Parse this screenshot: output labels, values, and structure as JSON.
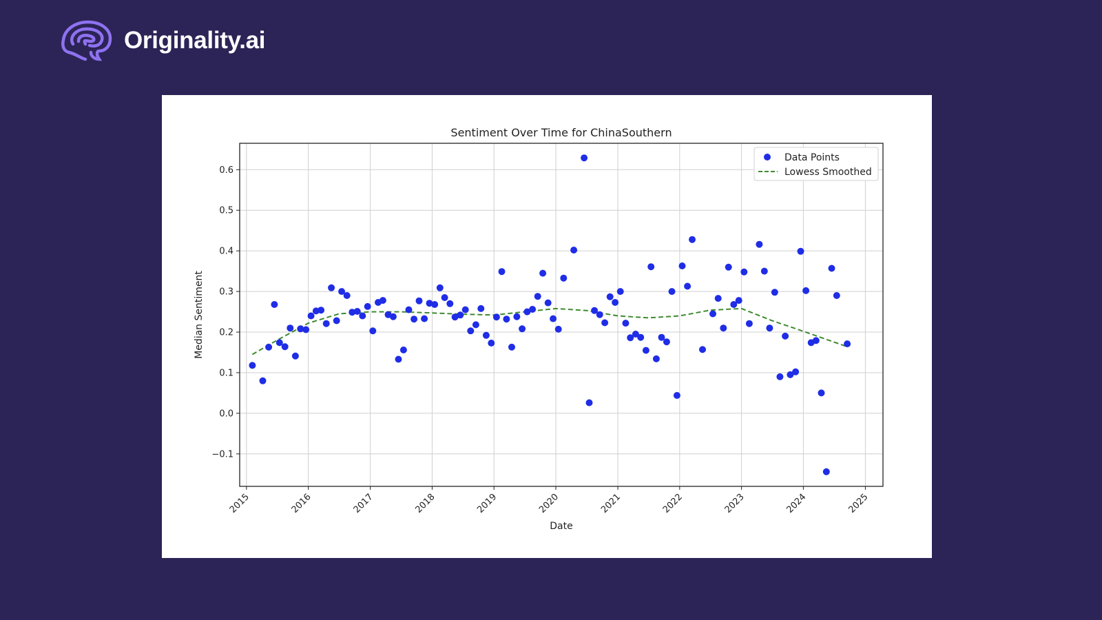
{
  "brand": {
    "name": "Originality.ai",
    "logo_icon": "brain-swirl-icon"
  },
  "chart_data": {
    "type": "scatter",
    "title": "Sentiment Over Time for ChinaSouthern",
    "xlabel": "Date",
    "ylabel": "Median Sentiment",
    "xlim": [
      "2014-11-22",
      "2025-04-15"
    ],
    "ylim": [
      -0.18,
      0.665
    ],
    "x_ticks": [
      "2015",
      "2016",
      "2017",
      "2018",
      "2019",
      "2020",
      "2021",
      "2022",
      "2023",
      "2024",
      "2025"
    ],
    "y_ticks": [
      "0.6",
      "0.5",
      "0.4",
      "0.3",
      "0.2",
      "0.1",
      "0.0",
      "−0.1"
    ],
    "y_tick_values": [
      0.6,
      0.5,
      0.4,
      0.3,
      0.2,
      0.1,
      0.0,
      -0.1
    ],
    "grid": true,
    "legend_position": "top-right",
    "series": [
      {
        "name": "Data Points",
        "kind": "scatter",
        "color": "#1f2de6",
        "points": [
          [
            "2015-02-05",
            0.118
          ],
          [
            "2015-04-07",
            0.08
          ],
          [
            "2015-05-12",
            0.163
          ],
          [
            "2015-06-15",
            0.268
          ],
          [
            "2015-07-15",
            0.174
          ],
          [
            "2015-08-16",
            0.164
          ],
          [
            "2015-09-16",
            0.21
          ],
          [
            "2015-10-17",
            0.141
          ],
          [
            "2015-11-16",
            0.208
          ],
          [
            "2015-12-18",
            0.206
          ],
          [
            "2016-01-17",
            0.24
          ],
          [
            "2016-02-16",
            0.252
          ],
          [
            "2016-03-16",
            0.254
          ],
          [
            "2016-04-16",
            0.221
          ],
          [
            "2016-05-16",
            0.309
          ],
          [
            "2016-06-16",
            0.228
          ],
          [
            "2016-07-16",
            0.3
          ],
          [
            "2016-08-16",
            0.29
          ],
          [
            "2016-09-16",
            0.249
          ],
          [
            "2016-10-16",
            0.251
          ],
          [
            "2016-11-16",
            0.24
          ],
          [
            "2016-12-16",
            0.263
          ],
          [
            "2017-01-16",
            0.203
          ],
          [
            "2017-02-16",
            0.273
          ],
          [
            "2017-03-16",
            0.278
          ],
          [
            "2017-04-16",
            0.243
          ],
          [
            "2017-05-16",
            0.238
          ],
          [
            "2017-06-16",
            0.133
          ],
          [
            "2017-07-16",
            0.156
          ],
          [
            "2017-08-16",
            0.255
          ],
          [
            "2017-09-16",
            0.232
          ],
          [
            "2017-10-16",
            0.277
          ],
          [
            "2017-11-16",
            0.233
          ],
          [
            "2017-12-16",
            0.271
          ],
          [
            "2018-01-16",
            0.268
          ],
          [
            "2018-02-16",
            0.309
          ],
          [
            "2018-03-16",
            0.285
          ],
          [
            "2018-04-16",
            0.27
          ],
          [
            "2018-05-16",
            0.237
          ],
          [
            "2018-06-16",
            0.242
          ],
          [
            "2018-07-16",
            0.255
          ],
          [
            "2018-08-16",
            0.203
          ],
          [
            "2018-09-16",
            0.218
          ],
          [
            "2018-10-16",
            0.258
          ],
          [
            "2018-11-16",
            0.192
          ],
          [
            "2018-12-16",
            0.173
          ],
          [
            "2019-01-16",
            0.237
          ],
          [
            "2019-02-16",
            0.349
          ],
          [
            "2019-03-16",
            0.232
          ],
          [
            "2019-04-16",
            0.163
          ],
          [
            "2019-05-16",
            0.238
          ],
          [
            "2019-06-16",
            0.208
          ],
          [
            "2019-07-16",
            0.25
          ],
          [
            "2019-08-16",
            0.256
          ],
          [
            "2019-09-16",
            0.288
          ],
          [
            "2019-10-16",
            0.345
          ],
          [
            "2019-11-16",
            0.272
          ],
          [
            "2019-12-16",
            0.233
          ],
          [
            "2020-01-16",
            0.207
          ],
          [
            "2020-02-16",
            0.333
          ],
          [
            "2020-04-16",
            0.402
          ],
          [
            "2020-06-16",
            0.629
          ],
          [
            "2020-07-16",
            0.026
          ],
          [
            "2020-08-16",
            0.253
          ],
          [
            "2020-09-16",
            0.243
          ],
          [
            "2020-10-16",
            0.223
          ],
          [
            "2020-11-16",
            0.287
          ],
          [
            "2020-12-16",
            0.273
          ],
          [
            "2021-01-16",
            0.3
          ],
          [
            "2021-02-16",
            0.222
          ],
          [
            "2021-03-16",
            0.186
          ],
          [
            "2021-04-16",
            0.195
          ],
          [
            "2021-05-16",
            0.187
          ],
          [
            "2021-06-16",
            0.155
          ],
          [
            "2021-07-16",
            0.361
          ],
          [
            "2021-08-16",
            0.134
          ],
          [
            "2021-09-16",
            0.187
          ],
          [
            "2021-10-16",
            0.176
          ],
          [
            "2021-11-16",
            0.3
          ],
          [
            "2021-12-16",
            0.044
          ],
          [
            "2022-01-16",
            0.363
          ],
          [
            "2022-02-16",
            0.313
          ],
          [
            "2022-03-16",
            0.428
          ],
          [
            "2022-05-16",
            0.157
          ],
          [
            "2022-07-16",
            0.245
          ],
          [
            "2022-08-16",
            0.283
          ],
          [
            "2022-09-16",
            0.21
          ],
          [
            "2022-10-16",
            0.36
          ],
          [
            "2022-11-16",
            0.268
          ],
          [
            "2022-12-16",
            0.278
          ],
          [
            "2023-01-16",
            0.348
          ],
          [
            "2023-02-16",
            0.221
          ],
          [
            "2023-04-16",
            0.416
          ],
          [
            "2023-05-16",
            0.35
          ],
          [
            "2023-06-16",
            0.21
          ],
          [
            "2023-07-16",
            0.298
          ],
          [
            "2023-08-16",
            0.09
          ],
          [
            "2023-09-16",
            0.19
          ],
          [
            "2023-10-16",
            0.095
          ],
          [
            "2023-11-16",
            0.102
          ],
          [
            "2023-12-16",
            0.399
          ],
          [
            "2024-01-16",
            0.302
          ],
          [
            "2024-02-16",
            0.174
          ],
          [
            "2024-03-16",
            0.179
          ],
          [
            "2024-04-16",
            0.05
          ],
          [
            "2024-05-16",
            -0.144
          ],
          [
            "2024-06-16",
            0.357
          ],
          [
            "2024-07-16",
            0.29
          ],
          [
            "2024-09-16",
            0.171
          ]
        ]
      },
      {
        "name": "Lowess Smoothed",
        "kind": "line",
        "style": "dashed",
        "color": "#3d8a2e",
        "points": [
          [
            "2015-02-05",
            0.145
          ],
          [
            "2015-07-01",
            0.18
          ],
          [
            "2016-01-01",
            0.222
          ],
          [
            "2016-07-01",
            0.245
          ],
          [
            "2017-01-01",
            0.25
          ],
          [
            "2017-07-01",
            0.25
          ],
          [
            "2018-01-01",
            0.247
          ],
          [
            "2018-07-01",
            0.244
          ],
          [
            "2019-01-01",
            0.242
          ],
          [
            "2019-07-01",
            0.25
          ],
          [
            "2020-01-01",
            0.258
          ],
          [
            "2020-07-01",
            0.253
          ],
          [
            "2021-01-01",
            0.24
          ],
          [
            "2021-07-01",
            0.235
          ],
          [
            "2022-01-01",
            0.24
          ],
          [
            "2022-07-01",
            0.254
          ],
          [
            "2023-01-01",
            0.258
          ],
          [
            "2023-07-01",
            0.228
          ],
          [
            "2024-01-01",
            0.202
          ],
          [
            "2024-09-16",
            0.164
          ]
        ]
      }
    ]
  }
}
